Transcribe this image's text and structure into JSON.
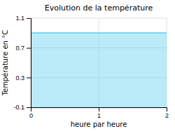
{
  "chart_data": {
    "type": "area",
    "title": "Evolution de la température",
    "x_label": "heure par heure",
    "y_label": "Température en °C",
    "x": [
      0,
      2
    ],
    "values": [
      0.9,
      0.9
    ],
    "color": "#55ccee",
    "xlim": [
      0,
      2
    ],
    "ylim": [
      -0.1,
      1.1
    ],
    "xticks": [
      0,
      1,
      2
    ],
    "yticks": [
      -0.1,
      0.3,
      0.7,
      1.1
    ],
    "grid": true
  }
}
